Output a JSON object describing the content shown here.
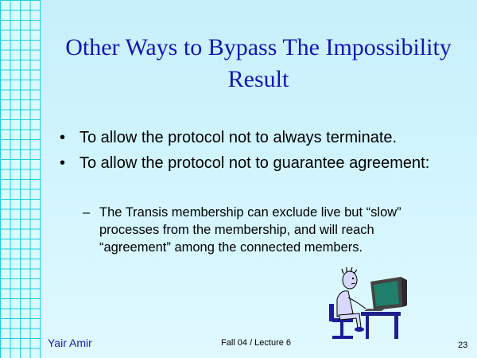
{
  "slide": {
    "title": "Other Ways to Bypass The Impossibility Result",
    "bullets": [
      "To allow the protocol not to always terminate.",
      "To allow the protocol not to guarantee agreement:"
    ],
    "sub_bullets": [
      "The Transis membership can exclude live but “slow” processes from the membership, and will reach “agreement” among the connected members."
    ]
  },
  "footer": {
    "author": "Yair Amir",
    "course": "Fall 04 / Lecture 6",
    "page": "23"
  },
  "clipart": {
    "icon": "person-at-computer-icon"
  }
}
